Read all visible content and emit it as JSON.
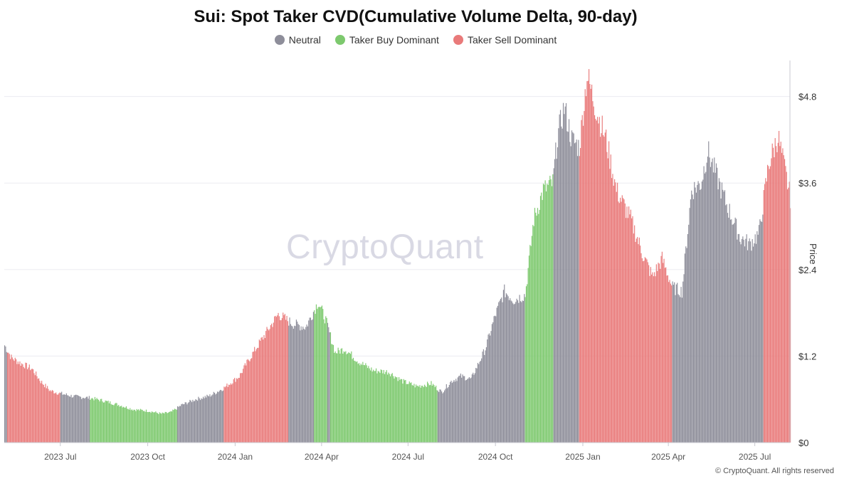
{
  "chart_data": {
    "type": "bar",
    "title": "Sui: Spot Taker CVD(Cumulative Volume Delta, 90-day)",
    "ylabel": "Price",
    "y_unit_prefix": "$",
    "ylim": [
      0,
      5.3
    ],
    "y_ticks": [
      0,
      1.2,
      2.4,
      3.6,
      4.8
    ],
    "y_tick_labels": [
      "$0",
      "$1.2",
      "$2.4",
      "$3.6",
      "$4.8"
    ],
    "x_tick_labels": [
      "2023 Jul",
      "2023 Oct",
      "2024 Jan",
      "2024 Apr",
      "2024 Jul",
      "2024 Oct",
      "2025 Jan",
      "2025 Apr",
      "2025 Jul"
    ],
    "x_start": "2023-05-03",
    "x_end": "2025-08-07",
    "grid": "horizontal",
    "legend_position": "top",
    "colors": {
      "Neutral": "#8e8e9a",
      "Taker Buy Dominant": "#7dc96e",
      "Taker Sell Dominant": "#e97a7a"
    },
    "series": [
      {
        "name": "Neutral"
      },
      {
        "name": "Taker Buy Dominant"
      },
      {
        "name": "Taker Sell Dominant"
      }
    ],
    "price_points": [
      [
        "2023-05-03",
        1.35
      ],
      [
        "2023-05-10",
        1.18
      ],
      [
        "2023-05-20",
        1.1
      ],
      [
        "2023-06-01",
        1.02
      ],
      [
        "2023-06-10",
        0.85
      ],
      [
        "2023-06-20",
        0.72
      ],
      [
        "2023-07-01",
        0.68
      ],
      [
        "2023-07-15",
        0.64
      ],
      [
        "2023-08-01",
        0.62
      ],
      [
        "2023-08-15",
        0.58
      ],
      [
        "2023-09-01",
        0.52
      ],
      [
        "2023-09-15",
        0.46
      ],
      [
        "2023-10-01",
        0.44
      ],
      [
        "2023-10-15",
        0.4
      ],
      [
        "2023-10-25",
        0.42
      ],
      [
        "2023-11-05",
        0.52
      ],
      [
        "2023-11-20",
        0.6
      ],
      [
        "2023-12-05",
        0.65
      ],
      [
        "2023-12-20",
        0.76
      ],
      [
        "2024-01-05",
        0.92
      ],
      [
        "2024-01-15",
        1.15
      ],
      [
        "2024-02-01",
        1.5
      ],
      [
        "2024-02-15",
        1.78
      ],
      [
        "2024-03-01",
        1.65
      ],
      [
        "2024-03-15",
        1.6
      ],
      [
        "2024-03-28",
        1.95
      ],
      [
        "2024-04-05",
        1.7
      ],
      [
        "2024-04-15",
        1.25
      ],
      [
        "2024-04-25",
        1.3
      ],
      [
        "2024-05-10",
        1.12
      ],
      [
        "2024-05-25",
        1.0
      ],
      [
        "2024-06-10",
        0.98
      ],
      [
        "2024-06-25",
        0.85
      ],
      [
        "2024-07-10",
        0.78
      ],
      [
        "2024-07-25",
        0.82
      ],
      [
        "2024-08-05",
        0.7
      ],
      [
        "2024-08-15",
        0.85
      ],
      [
        "2024-08-25",
        0.92
      ],
      [
        "2024-09-05",
        0.88
      ],
      [
        "2024-09-20",
        1.3
      ],
      [
        "2024-09-30",
        1.75
      ],
      [
        "2024-10-10",
        2.1
      ],
      [
        "2024-10-20",
        1.98
      ],
      [
        "2024-11-01",
        2.05
      ],
      [
        "2024-11-10",
        3.1
      ],
      [
        "2024-11-20",
        3.5
      ],
      [
        "2024-11-30",
        3.6
      ],
      [
        "2024-12-05",
        4.25
      ],
      [
        "2024-12-12",
        4.65
      ],
      [
        "2024-12-20",
        4.2
      ],
      [
        "2024-12-28",
        4.1
      ],
      [
        "2025-01-05",
        5.1
      ],
      [
        "2025-01-15",
        4.6
      ],
      [
        "2025-01-25",
        4.2
      ],
      [
        "2025-02-05",
        3.5
      ],
      [
        "2025-02-20",
        3.1
      ],
      [
        "2025-03-05",
        2.6
      ],
      [
        "2025-03-15",
        2.3
      ],
      [
        "2025-03-25",
        2.55
      ],
      [
        "2025-04-05",
        2.15
      ],
      [
        "2025-04-15",
        2.1
      ],
      [
        "2025-04-25",
        3.5
      ],
      [
        "2025-05-05",
        3.6
      ],
      [
        "2025-05-12",
        4.05
      ],
      [
        "2025-05-20",
        3.75
      ],
      [
        "2025-06-01",
        3.3
      ],
      [
        "2025-06-15",
        2.85
      ],
      [
        "2025-06-25",
        2.75
      ],
      [
        "2025-07-05",
        2.9
      ],
      [
        "2025-07-15",
        3.85
      ],
      [
        "2025-07-25",
        4.25
      ],
      [
        "2025-08-01",
        3.8
      ],
      [
        "2025-08-07",
        3.4
      ]
    ],
    "regime_segments": [
      [
        "2023-05-03",
        "2023-05-06",
        "Neutral"
      ],
      [
        "2023-05-06",
        "2023-07-01",
        "Taker Sell Dominant"
      ],
      [
        "2023-07-01",
        "2023-08-01",
        "Neutral"
      ],
      [
        "2023-08-01",
        "2023-11-01",
        "Taker Buy Dominant"
      ],
      [
        "2023-11-01",
        "2023-12-20",
        "Neutral"
      ],
      [
        "2023-12-20",
        "2024-02-26",
        "Taker Sell Dominant"
      ],
      [
        "2024-02-26",
        "2024-03-24",
        "Neutral"
      ],
      [
        "2024-03-24",
        "2024-04-07",
        "Taker Buy Dominant"
      ],
      [
        "2024-04-07",
        "2024-04-10",
        "Neutral"
      ],
      [
        "2024-04-10",
        "2024-08-01",
        "Taker Buy Dominant"
      ],
      [
        "2024-08-01",
        "2024-11-01",
        "Neutral"
      ],
      [
        "2024-11-01",
        "2024-12-01",
        "Taker Buy Dominant"
      ],
      [
        "2024-12-01",
        "2024-12-28",
        "Neutral"
      ],
      [
        "2024-12-28",
        "2025-04-05",
        "Taker Sell Dominant"
      ],
      [
        "2025-04-05",
        "2025-07-10",
        "Neutral"
      ],
      [
        "2025-07-10",
        "2025-08-07",
        "Taker Sell Dominant"
      ]
    ]
  },
  "legend": {
    "items": [
      {
        "label": "Neutral",
        "color": "#8e8e9a"
      },
      {
        "label": "Taker Buy Dominant",
        "color": "#7dc96e"
      },
      {
        "label": "Taker Sell Dominant",
        "color": "#e97a7a"
      }
    ]
  },
  "watermark": "CryptoQuant",
  "copyright": "© CryptoQuant. All rights reserved"
}
